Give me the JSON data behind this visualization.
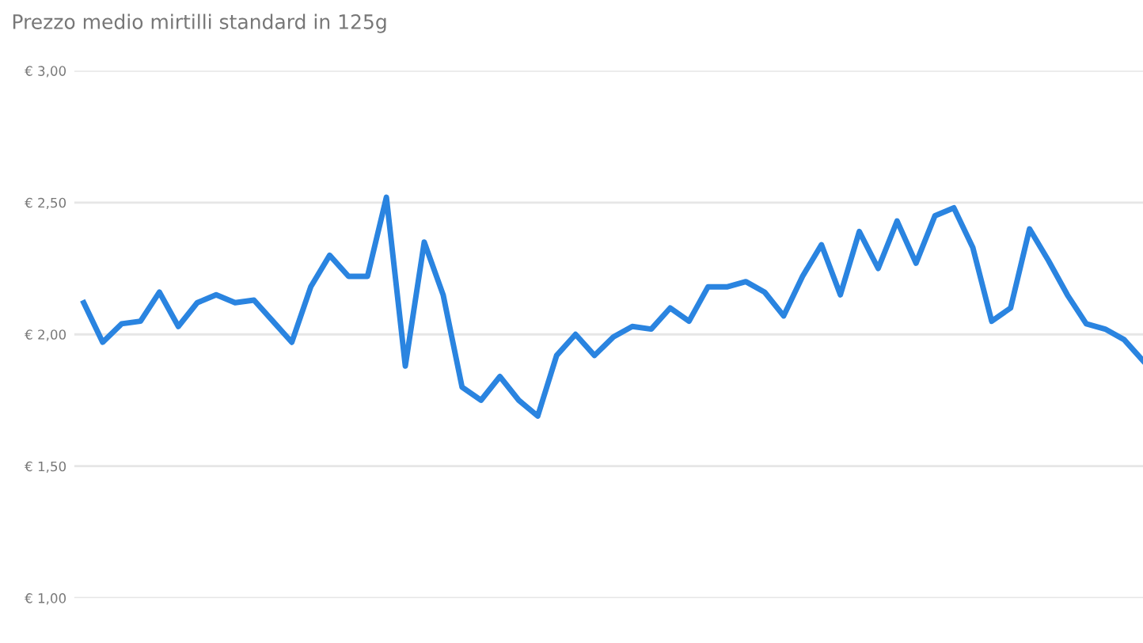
{
  "chart_data": {
    "type": "line",
    "title": "Prezzo medio mirtilli standard in 125g",
    "categories": [
      null,
      null,
      null,
      null,
      null,
      null,
      null,
      null,
      null,
      null,
      null,
      null,
      null,
      null,
      null,
      null,
      null,
      null,
      null,
      null,
      null,
      null,
      null,
      null,
      null,
      null,
      null,
      null,
      null,
      null,
      null,
      null,
      null,
      null,
      null,
      null,
      null,
      null,
      null,
      null,
      null,
      null,
      null,
      null,
      null,
      null,
      null,
      null,
      null,
      null,
      null,
      null,
      null,
      null,
      null,
      null,
      null
    ],
    "series": [
      {
        "color": "#2a84e0",
        "values": [
          2.12,
          1.97,
          2.04,
          2.05,
          2.16,
          2.03,
          2.12,
          2.15,
          2.12,
          2.13,
          2.05,
          1.97,
          2.18,
          2.3,
          2.22,
          2.22,
          2.52,
          1.88,
          2.35,
          2.15,
          1.8,
          1.75,
          1.84,
          1.75,
          1.69,
          1.92,
          2.0,
          1.92,
          1.99,
          2.03,
          2.02,
          2.1,
          2.05,
          2.18,
          2.18,
          2.2,
          2.16,
          2.07,
          2.22,
          2.34,
          2.15,
          2.39,
          2.25,
          2.43,
          2.27,
          2.45,
          2.48,
          2.33,
          2.05,
          2.1,
          2.4,
          2.28,
          2.15,
          2.04,
          2.02,
          1.98,
          1.9
        ]
      }
    ],
    "ylim": [
      1.0,
      3.0
    ],
    "yticks": [
      {
        "value": 1.0,
        "label": "€ 1,00"
      },
      {
        "value": 1.5,
        "label": "€ 1,50"
      },
      {
        "value": 2.0,
        "label": "€ 2,00"
      },
      {
        "value": 2.5,
        "label": "€ 2,50"
      },
      {
        "value": 3.0,
        "label": "€ 3,00"
      }
    ],
    "grid": "y",
    "marker": "none",
    "line_style": "solid",
    "legend": false
  }
}
